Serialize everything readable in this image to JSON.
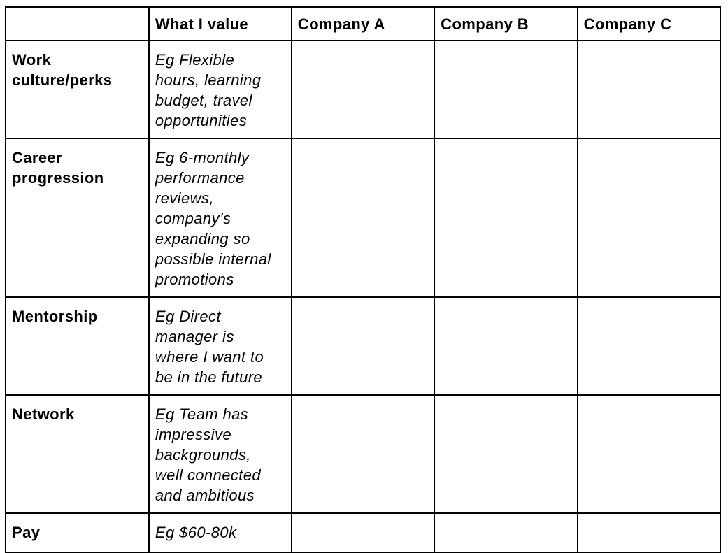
{
  "colors": {
    "background": "#ffffff",
    "border": "#000000",
    "text": "#000000"
  },
  "table": {
    "header": {
      "corner": "",
      "columns": [
        "What I value",
        "Company A",
        "Company B",
        "Company C"
      ]
    },
    "rows": [
      {
        "label": "Work culture/perks",
        "example": "Eg Flexible hours, learning budget, travel opportunities",
        "company_a": "",
        "company_b": "",
        "company_c": ""
      },
      {
        "label": "Career progression",
        "example": "Eg 6-monthly performance reviews, company’s expanding so possible internal promotions",
        "company_a": "",
        "company_b": "",
        "company_c": ""
      },
      {
        "label": "Mentorship",
        "example": "Eg Direct manager is where I want to be in the future",
        "company_a": "",
        "company_b": "",
        "company_c": ""
      },
      {
        "label": "Network",
        "example": "Eg Team has impressive backgrounds, well connected and ambitious",
        "company_a": "",
        "company_b": "",
        "company_c": ""
      },
      {
        "label": "Pay",
        "example": "Eg $60-80k",
        "company_a": "",
        "company_b": "",
        "company_c": ""
      }
    ]
  }
}
